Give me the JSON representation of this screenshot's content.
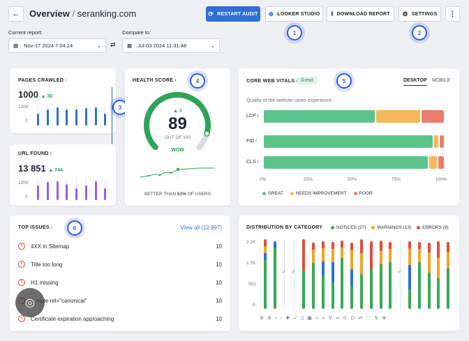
{
  "header": {
    "title": "Overview",
    "separator": "/",
    "domain": "seranking.com",
    "buttons": {
      "restart": "RESTART AUDIT",
      "looker": "LOOKER STUDIO",
      "download": "DOWNLOAD REPORT",
      "settings": "SETTINGS"
    }
  },
  "reports": {
    "current_label": "Current report:",
    "current_value": "Nov-17 2024 7:04:24",
    "compare_label": "Compare to:",
    "compare_value": "Jul-03 2024 11:31:48"
  },
  "badges": [
    "1",
    "2",
    "3",
    "4",
    "5",
    "6"
  ],
  "pages_crawled": {
    "title": "PAGES CRAWLED",
    "info": "i",
    "value": "1000",
    "delta": "30",
    "y_ticks": [
      "1200",
      "0"
    ],
    "values": [
      0.55,
      0.75,
      0.85,
      0.78,
      0.75,
      0.82,
      0.88,
      0.55
    ]
  },
  "url_found": {
    "title": "URL FOUND",
    "info": "i",
    "value": "13 851",
    "delta": "744",
    "y_ticks": [
      "1200",
      "0"
    ],
    "values": [
      0.7,
      0.85,
      0.9,
      0.75,
      0.55,
      0.7,
      0.9,
      0.55
    ]
  },
  "health": {
    "title": "HEALTH SCORE",
    "info": "i",
    "delta": "4",
    "score": "89",
    "out_of": "OUT OF 100",
    "rating": "WOW",
    "score_value": 89,
    "better_prefix": "BETTER THAN ",
    "better_pct": "51%",
    "better_suffix": " OF USERS"
  },
  "cwv": {
    "title": "CORE WEB VITALS",
    "info": "i",
    "status": "Great",
    "tabs": [
      "DESKTOP",
      "MOBILE"
    ],
    "subtitle": "Quality of the website usres experience",
    "rows": [
      {
        "label": "LCP",
        "great": 62,
        "needs": 25,
        "poor": 13
      },
      {
        "label": "FID",
        "great": 94,
        "needs": 3,
        "poor": 3
      },
      {
        "label": "CLS",
        "great": 91,
        "needs": 5,
        "poor": 4
      }
    ],
    "x_ticks": [
      "0%",
      "25%",
      "50%",
      "75%",
      "100%"
    ],
    "legend": [
      "GREAT",
      "NEEDS IMPROVEMENT",
      "POOR"
    ],
    "colors": {
      "great": "#5cc48a",
      "needs": "#f2b85a",
      "poor": "#ec7a6f"
    }
  },
  "top_issues": {
    "title": "TOP ISSUES",
    "info": "i",
    "view_all": "View all (12 997)",
    "items": [
      {
        "label": "4XX in Sitemap",
        "count": "10"
      },
      {
        "label": "Title too long",
        "count": "10"
      },
      {
        "label": "H1 missing",
        "count": "10"
      },
      {
        "label": "…mple rel=\"canonical\"",
        "count": "10"
      },
      {
        "label": "Certificate expiration approaching",
        "count": "10"
      }
    ]
  },
  "distribution": {
    "title": "DISTRIBUTION BY CATEGORY",
    "legend": [
      "NOTICES (27)",
      "WARNINGS (13)",
      "ERRORS (9)"
    ],
    "y_ticks": [
      "2.2K",
      "1.7K",
      "551",
      "0"
    ],
    "colors": {
      "notices": "#3aa85a",
      "warnings": "#f2a428",
      "errors": "#e24c3c",
      "blue": "#2f6fd6"
    }
  }
}
